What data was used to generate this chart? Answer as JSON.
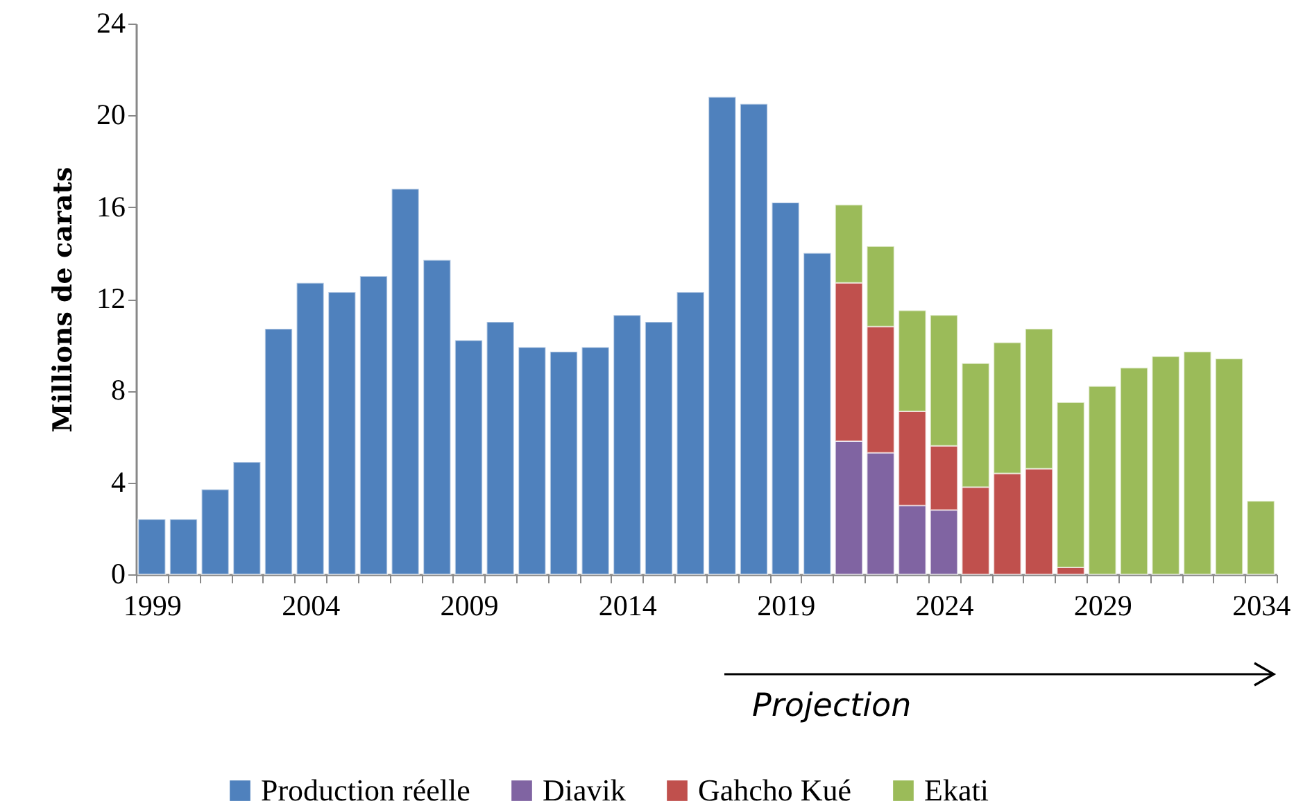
{
  "chart_data": {
    "type": "bar",
    "stacked": true,
    "ylabel": "Millions de carats",
    "legend": "bottom",
    "categories": [
      "1999",
      null,
      null,
      null,
      null,
      "2004",
      null,
      null,
      null,
      null,
      "2009",
      null,
      null,
      null,
      null,
      "2014",
      null,
      null,
      null,
      null,
      "2019",
      null,
      null,
      null,
      null,
      "2024",
      null,
      null,
      null,
      null,
      "2029",
      null,
      null,
      null,
      null,
      "2034"
    ],
    "ylim": [
      0,
      24
    ],
    "yticks": [
      0,
      4,
      8,
      12,
      16,
      20,
      24
    ],
    "series": [
      {
        "name": "Production réelle",
        "color": "#4f81bd",
        "values": [
          2.4,
          2.4,
          3.7,
          4.9,
          10.7,
          12.7,
          12.3,
          13.0,
          16.8,
          13.7,
          10.2,
          11.0,
          9.9,
          9.7,
          9.9,
          11.3,
          11.0,
          12.3,
          20.8,
          20.5,
          16.2,
          14.0,
          null,
          null,
          null,
          null,
          null,
          null,
          null,
          null,
          null,
          null,
          null,
          null,
          null,
          null
        ]
      },
      {
        "name": "Diavik",
        "color": "#8064a2",
        "values": [
          null,
          null,
          null,
          null,
          null,
          null,
          null,
          null,
          null,
          null,
          null,
          null,
          null,
          null,
          null,
          null,
          null,
          null,
          null,
          null,
          null,
          null,
          5.8,
          5.3,
          3.0,
          2.8,
          null,
          null,
          null,
          null,
          null,
          null,
          null,
          null,
          null,
          null
        ]
      },
      {
        "name": "Gahcho Kué",
        "color": "#c0504d",
        "values": [
          null,
          null,
          null,
          null,
          null,
          null,
          null,
          null,
          null,
          null,
          null,
          null,
          null,
          null,
          null,
          null,
          null,
          null,
          null,
          null,
          null,
          null,
          6.9,
          5.5,
          4.1,
          2.8,
          3.8,
          4.4,
          4.6,
          0.3,
          null,
          null,
          null,
          null,
          null,
          null
        ]
      },
      {
        "name": "Ekati",
        "color": "#9bbb59",
        "values": [
          null,
          null,
          null,
          null,
          null,
          null,
          null,
          null,
          null,
          null,
          null,
          null,
          null,
          null,
          null,
          null,
          null,
          null,
          null,
          null,
          null,
          null,
          3.4,
          3.5,
          4.4,
          5.7,
          5.4,
          5.7,
          6.1,
          7.2,
          8.2,
          9.0,
          9.5,
          9.7,
          9.4,
          3.2
        ]
      }
    ],
    "annotations": [
      "Projection"
    ]
  }
}
